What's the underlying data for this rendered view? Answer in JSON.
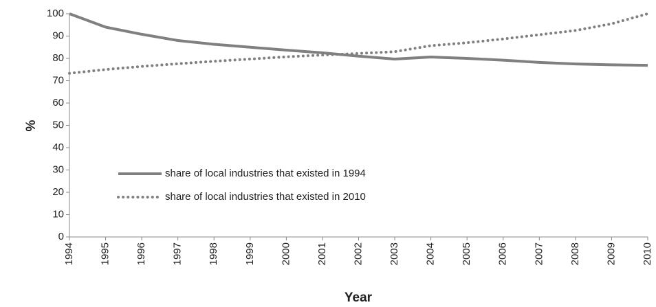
{
  "chart_data": {
    "type": "line",
    "x_label": "Year",
    "y_label": "%",
    "x": [
      1994,
      1995,
      1996,
      1997,
      1998,
      1999,
      2000,
      2001,
      2002,
      2003,
      2004,
      2005,
      2006,
      2007,
      2008,
      2009,
      2010
    ],
    "series": [
      {
        "name": "share of local industries that existed in 1994",
        "color": "#808080",
        "style": "solid",
        "values": [
          100,
          94,
          90.8,
          88,
          86.3,
          85,
          83.7,
          82.5,
          81,
          79.7,
          80.6,
          80,
          79.2,
          78.2,
          77.5,
          77.1,
          76.9
        ]
      },
      {
        "name": "share of local industries that existed in 2010",
        "color": "#808080",
        "style": "dotted",
        "values": [
          73.3,
          75,
          76.4,
          77.6,
          78.7,
          79.7,
          80.7,
          81.5,
          82.2,
          83,
          85.7,
          87,
          88.7,
          90.6,
          92.5,
          95.5,
          100
        ]
      }
    ],
    "xlim": [
      1994,
      2010
    ],
    "xticks": [
      1994,
      1995,
      1996,
      1997,
      1998,
      1999,
      2000,
      2001,
      2002,
      2003,
      2004,
      2005,
      2006,
      2007,
      2008,
      2009,
      2010
    ],
    "ylim": [
      0,
      100
    ],
    "yticks": [
      0,
      10,
      20,
      30,
      40,
      50,
      60,
      70,
      80,
      90,
      100
    ],
    "grid": false,
    "legend": "center left"
  }
}
